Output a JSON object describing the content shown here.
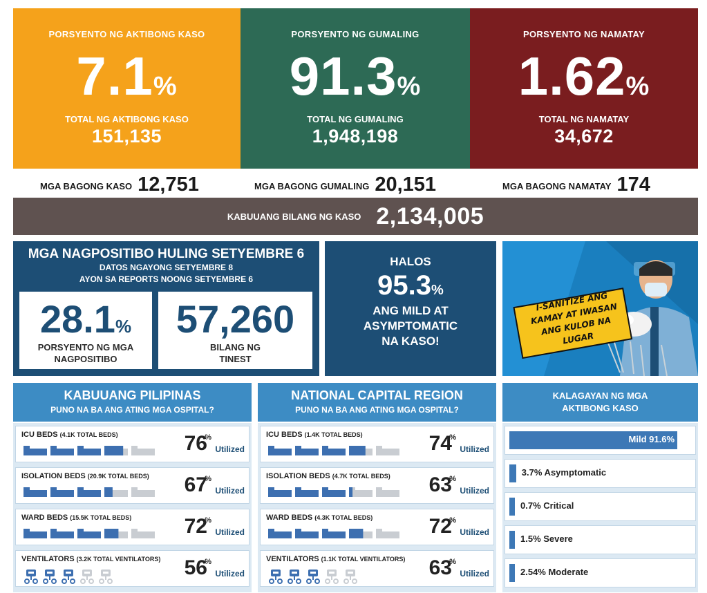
{
  "colors": {
    "orange": "#f5a21b",
    "green": "#2d6a55",
    "red": "#7a1d1f",
    "navy": "#1d4e75",
    "blue": "#3d8cc4",
    "gray": "#5f5250"
  },
  "top": [
    {
      "label": "PORSYENTO NG AKTIBONG KASO",
      "value": "7.1",
      "pct": "%",
      "sub": "TOTAL NG AKTIBONG KASO",
      "num": "151,135"
    },
    {
      "label": "PORSYENTO NG GUMALING",
      "value": "91.3",
      "pct": "%",
      "sub": "TOTAL NG GUMALING",
      "num": "1,948,198"
    },
    {
      "label": "PORSYENTO NG NAMATAY",
      "value": "1.62",
      "pct": "%",
      "sub": "TOTAL NG NAMATAY",
      "num": "34,672"
    }
  ],
  "new": [
    {
      "label": "MGA BAGONG KASO",
      "value": "12,751"
    },
    {
      "label": "MGA BAGONG GUMALING",
      "value": "20,151"
    },
    {
      "label": "MGA BAGONG NAMATAY",
      "value": "174"
    }
  ],
  "total": {
    "label": "KABUUANG BILANG NG KASO",
    "value": "2,134,005"
  },
  "positivity": {
    "title": "MGA NAGPOSITIBO HULING SETYEMBRE 6",
    "sub1": "DATOS NGAYONG SETYEMBRE 8",
    "sub2": "AYON SA REPORTS NOONG SETYEMBRE 6",
    "rate": "28.1",
    "rate_pct": "%",
    "rate_cap1": "PORSYENTO NG MGA",
    "rate_cap2": "NAGPOSITIBO",
    "tested": "57,260",
    "tested_cap1": "BILANG NG",
    "tested_cap2": "TINEST"
  },
  "halos": {
    "a": "HALOS",
    "value": "95.3",
    "pct": "%",
    "c1": "ANG MILD AT",
    "c2": "ASYMPTOMATIC",
    "c3": "NA KASO!"
  },
  "poster": {
    "line1": "I-SANITIZE ANG",
    "line2": "KAMAY AT IWASAN",
    "line3": "ANG KULOB NA LUGAR"
  },
  "pct_symbol": "%",
  "utilized": "Utilized",
  "hospitals": [
    {
      "title": "KABUUANG PILIPINAS",
      "subtitle": "PUNO NA BA ANG ATING MGA OSPITAL?",
      "rows": [
        {
          "label": "ICU BEDS",
          "small": "(4.1K TOTAL BEDS)",
          "value": "76",
          "fraction": 0.76,
          "kind": "bed"
        },
        {
          "label": "ISOLATION BEDS",
          "small": "(20.9K TOTAL BEDS)",
          "value": "67",
          "fraction": 0.67,
          "kind": "bed"
        },
        {
          "label": "WARD BEDS",
          "small": "(15.5K TOTAL BEDS)",
          "value": "72",
          "fraction": 0.72,
          "kind": "bed"
        },
        {
          "label": "VENTILATORS",
          "small": "(3.2K TOTAL VENTILATORS)",
          "value": "56",
          "fraction": 0.56,
          "kind": "vent"
        }
      ]
    },
    {
      "title": "NATIONAL CAPITAL REGION",
      "subtitle": "PUNO NA BA ANG ATING MGA OSPITAL?",
      "rows": [
        {
          "label": "ICU BEDS",
          "small": "(1.4K TOTAL BEDS)",
          "value": "74",
          "fraction": 0.74,
          "kind": "bed"
        },
        {
          "label": "ISOLATION BEDS",
          "small": "(4.7K TOTAL BEDS)",
          "value": "63",
          "fraction": 0.63,
          "kind": "bed"
        },
        {
          "label": "WARD BEDS",
          "small": "(4.3K TOTAL BEDS)",
          "value": "72",
          "fraction": 0.72,
          "kind": "bed"
        },
        {
          "label": "VENTILATORS",
          "small": "(1.1K TOTAL VENTILATORS)",
          "value": "63",
          "fraction": 0.63,
          "kind": "vent"
        }
      ]
    }
  ],
  "kalagayan": {
    "title1": "KALAGAYAN NG MGA",
    "title2": "AKTIBONG KASO",
    "rows": [
      {
        "label": "Mild 91.6%",
        "share": 0.916
      },
      {
        "label": "3.7% Asymptomatic",
        "share": 0.037
      },
      {
        "label": "0.7% Critical",
        "share": 0.007
      },
      {
        "label": "1.5% Severe",
        "share": 0.015
      },
      {
        "label": "2.54% Moderate",
        "share": 0.0254
      }
    ]
  }
}
